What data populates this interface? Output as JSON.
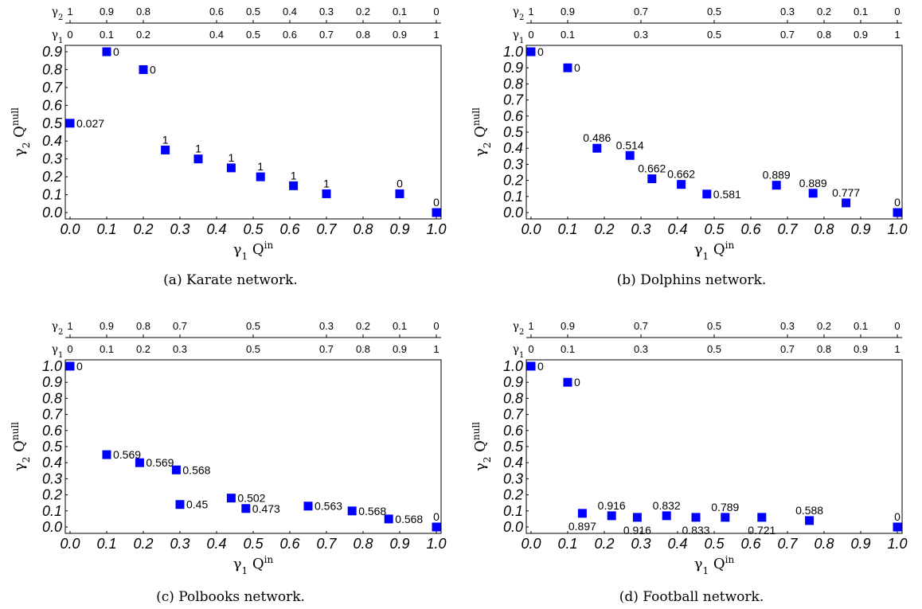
{
  "marker_color": "#0000ff",
  "charts": [
    {
      "caption": "(a) Karate network.",
      "g2_labels": [
        "1",
        "0.9",
        "0.8",
        "0.6",
        "0.5",
        "0.4",
        "0.3",
        "0.2",
        "0.1",
        "0"
      ],
      "g1_labels": [
        "0",
        "0.1",
        "0.2",
        "0.4",
        "0.5",
        "0.6",
        "0.7",
        "0.8",
        "0.9",
        "1"
      ],
      "label_dx": [
        0,
        0,
        0,
        0,
        0,
        0,
        0,
        0,
        0,
        0
      ],
      "label_dy": [
        0,
        0,
        0,
        0,
        0,
        0,
        0,
        0,
        0,
        0
      ]
    },
    {
      "caption": "(b) Dolphins network.",
      "g2_labels": [
        "1",
        "0.9",
        "0.7",
        "0.5",
        "0.3",
        "0.2",
        "0.1",
        "0"
      ],
      "g1_labels": [
        "0",
        "0.1",
        "0.3",
        "0.5",
        "0.7",
        "0.8",
        "0.9",
        "1"
      ],
      "label_dx": [
        0,
        0,
        0,
        0,
        0,
        0,
        0,
        0
      ],
      "label_dy": [
        0,
        0,
        0,
        0,
        0,
        0,
        0,
        0
      ]
    },
    {
      "caption": "(c) Polbooks network.",
      "g2_labels": [
        "1",
        "0.9",
        "0.8",
        "0.7",
        "0.5",
        "0.3",
        "0.2",
        "0.1",
        "0"
      ],
      "g1_labels": [
        "0",
        "0.1",
        "0.2",
        "0.3",
        "0.5",
        "0.7",
        "0.8",
        "0.9",
        "1"
      ],
      "label_dx": [
        0,
        0,
        0,
        0,
        0,
        0,
        0,
        0,
        0
      ],
      "label_dy": [
        0,
        0,
        0,
        0,
        0,
        0,
        0,
        0,
        0
      ]
    },
    {
      "caption": "(d) Football network.",
      "g2_labels": [
        "1",
        "0.9",
        "0.7",
        "0.5",
        "0.3",
        "0.2",
        "0.1",
        "0"
      ],
      "g1_labels": [
        "0",
        "0.1",
        "0.3",
        "0.5",
        "0.7",
        "0.8",
        "0.9",
        "1"
      ],
      "label_dx": [
        0,
        0,
        0,
        0,
        0,
        0,
        0,
        0
      ],
      "label_dy": [
        0,
        0,
        0,
        0,
        0,
        0,
        0,
        0
      ]
    }
  ],
  "chart_data": [
    {
      "type": "scatter",
      "xlabel": "γ1 Q^in",
      "ylabel": "γ2 Q^null",
      "xticks": [
        "0.0",
        "0.1",
        "0.2",
        "0.3",
        "0.4",
        "0.5",
        "0.6",
        "0.7",
        "0.8",
        "0.9",
        "1.0"
      ],
      "yticks": [
        "0.0",
        "0.1",
        "0.2",
        "0.3",
        "0.4",
        "0.5",
        "0.6",
        "0.7",
        "0.8",
        "0.9"
      ],
      "xlim": [
        0,
        1
      ],
      "ylim": [
        0,
        0.9
      ],
      "gamma2_axis": [
        1,
        0.9,
        0.8,
        0.6,
        0.5,
        0.4,
        0.3,
        0.2,
        0.1,
        0
      ],
      "gamma1_axis": [
        0,
        0.1,
        0.2,
        0.4,
        0.5,
        0.6,
        0.7,
        0.8,
        0.9,
        1
      ],
      "x": [
        0.0,
        0.1,
        0.2,
        0.26,
        0.35,
        0.44,
        0.52,
        0.61,
        0.7,
        0.9,
        1.0
      ],
      "y": [
        0.5,
        0.9,
        0.8,
        0.35,
        0.3,
        0.25,
        0.2,
        0.15,
        0.105,
        0.105,
        0.0
      ],
      "labels": [
        "0.027",
        "0",
        "0",
        "1",
        "1",
        "1",
        "1",
        "1",
        "1",
        "0",
        "0"
      ],
      "label_pos": [
        "right",
        "right",
        "right",
        "above",
        "above",
        "above",
        "above",
        "above",
        "above",
        "above",
        "above"
      ]
    },
    {
      "type": "scatter",
      "xlabel": "γ1 Q^in",
      "ylabel": "γ2 Q^null",
      "xticks": [
        "0.0",
        "0.1",
        "0.2",
        "0.3",
        "0.4",
        "0.5",
        "0.6",
        "0.7",
        "0.8",
        "0.9",
        "1.0"
      ],
      "yticks": [
        "0.0",
        "0.1",
        "0.2",
        "0.3",
        "0.4",
        "0.5",
        "0.6",
        "0.7",
        "0.8",
        "0.9",
        "1.0"
      ],
      "xlim": [
        0,
        1
      ],
      "ylim": [
        0,
        1.0
      ],
      "gamma2_axis": [
        1,
        0.9,
        0.7,
        0.5,
        0.3,
        0.2,
        0.1,
        0
      ],
      "gamma1_axis": [
        0,
        0.1,
        0.3,
        0.5,
        0.7,
        0.8,
        0.9,
        1
      ],
      "x": [
        0.0,
        0.1,
        0.18,
        0.27,
        0.33,
        0.41,
        0.48,
        0.67,
        0.77,
        0.86,
        1.0
      ],
      "y": [
        1.0,
        0.9,
        0.4,
        0.355,
        0.21,
        0.175,
        0.115,
        0.17,
        0.12,
        0.06,
        0.0
      ],
      "labels": [
        "0",
        "0",
        "0.486",
        "0.514",
        "0.662",
        "0.662",
        "0.581",
        "0.889",
        "0.889",
        "0.777",
        "0"
      ],
      "label_pos": [
        "right",
        "right",
        "above",
        "above",
        "above",
        "above",
        "right",
        "above",
        "above",
        "above",
        "above"
      ]
    },
    {
      "type": "scatter",
      "xlabel": "γ1 Q^in",
      "ylabel": "γ2 Q^null",
      "xticks": [
        "0.0",
        "0.1",
        "0.2",
        "0.3",
        "0.4",
        "0.5",
        "0.6",
        "0.7",
        "0.8",
        "0.9",
        "1.0"
      ],
      "yticks": [
        "0.0",
        "0.1",
        "0.2",
        "0.3",
        "0.4",
        "0.5",
        "0.6",
        "0.7",
        "0.8",
        "0.9",
        "1.0"
      ],
      "xlim": [
        0,
        1
      ],
      "ylim": [
        0,
        1.0
      ],
      "gamma2_axis": [
        1,
        0.9,
        0.8,
        0.7,
        0.5,
        0.3,
        0.2,
        0.1,
        0
      ],
      "gamma1_axis": [
        0,
        0.1,
        0.2,
        0.3,
        0.5,
        0.7,
        0.8,
        0.9,
        1
      ],
      "x": [
        0.0,
        0.1,
        0.19,
        0.29,
        0.3,
        0.44,
        0.48,
        0.65,
        0.77,
        0.87,
        1.0
      ],
      "y": [
        1.0,
        0.45,
        0.4,
        0.355,
        0.14,
        0.18,
        0.115,
        0.13,
        0.1,
        0.05,
        0.0
      ],
      "labels": [
        "0",
        "0.569",
        "0.569",
        "0.568",
        "0.45",
        "0.502",
        "0.473",
        "0.563",
        "0.568",
        "0.568",
        "0"
      ],
      "label_pos": [
        "right",
        "right",
        "right",
        "right",
        "right",
        "right",
        "right",
        "right",
        "right",
        "right",
        "above"
      ]
    },
    {
      "type": "scatter",
      "xlabel": "γ1 Q^in",
      "ylabel": "γ2 Q^null",
      "xticks": [
        "0.0",
        "0.1",
        "0.2",
        "0.3",
        "0.4",
        "0.5",
        "0.6",
        "0.7",
        "0.8",
        "0.9",
        "1.0"
      ],
      "yticks": [
        "0.0",
        "0.1",
        "0.2",
        "0.3",
        "0.4",
        "0.5",
        "0.6",
        "0.7",
        "0.8",
        "0.9",
        "1.0"
      ],
      "xlim": [
        0,
        1
      ],
      "ylim": [
        0,
        1.0
      ],
      "gamma2_axis": [
        1,
        0.9,
        0.7,
        0.5,
        0.3,
        0.2,
        0.1,
        0
      ],
      "gamma1_axis": [
        0,
        0.1,
        0.3,
        0.5,
        0.7,
        0.8,
        0.9,
        1
      ],
      "x": [
        0.0,
        0.1,
        0.14,
        0.22,
        0.29,
        0.37,
        0.45,
        0.53,
        0.63,
        0.76,
        1.0
      ],
      "y": [
        1.0,
        0.9,
        0.085,
        0.07,
        0.06,
        0.07,
        0.06,
        0.06,
        0.06,
        0.04,
        0.0
      ],
      "labels": [
        "0",
        "0",
        "0.897",
        "0.916",
        "0.916",
        "0.832",
        "0.833",
        "0.789",
        "0.721",
        "0.588",
        "0"
      ],
      "label_pos": [
        "right",
        "right",
        "below",
        "above",
        "below",
        "above",
        "below",
        "above",
        "below",
        "above",
        "above"
      ]
    }
  ]
}
